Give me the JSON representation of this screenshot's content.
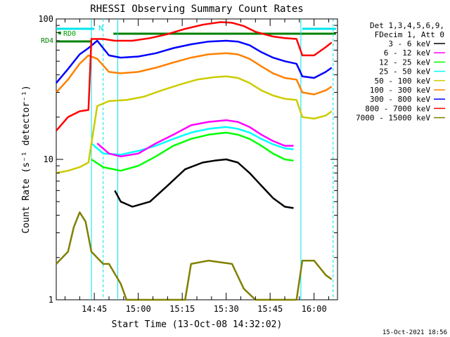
{
  "chart_data": {
    "type": "line",
    "title": "RHESSI Observing Summary Count Rates",
    "xlabel": "Start Time (13-Oct-08 14:32:02)",
    "ylabel": "Count Rate (s⁻¹ detector⁻¹)",
    "yscale": "log",
    "ylim": [
      1,
      100
    ],
    "xlim_minutes": [
      0,
      96
    ],
    "x_ticks": [
      {
        "m": 13,
        "label": "14:45"
      },
      {
        "m": 28,
        "label": "15:00"
      },
      {
        "m": 43,
        "label": "15:15"
      },
      {
        "m": 58,
        "label": "15:30"
      },
      {
        "m": 73,
        "label": "15:45"
      },
      {
        "m": 88,
        "label": "16:00"
      }
    ],
    "y_ticks": [
      {
        "v": 1,
        "label": "1"
      },
      {
        "v": 10,
        "label": "10"
      },
      {
        "v": 100,
        "label": "100"
      }
    ],
    "legend_header": [
      "Det 1,3,4,5,6,9,",
      "FDecim 1, Att 0"
    ],
    "legend_position": "top-right-outside",
    "footer_date": "15-Oct-2021 18:56",
    "flags": [
      {
        "name": "N",
        "color": "#00e5ee"
      },
      {
        "name": "RD0",
        "color": "#00a000"
      },
      {
        "name": "RD4",
        "color": "#008000"
      }
    ],
    "series": [
      {
        "name": "3 - 6 keV",
        "color": "#000000",
        "points": [
          [
            20,
            6
          ],
          [
            22,
            5
          ],
          [
            26,
            4.6
          ],
          [
            32,
            5
          ],
          [
            38,
            6.5
          ],
          [
            44,
            8.5
          ],
          [
            50,
            9.5
          ],
          [
            54,
            9.8
          ],
          [
            58,
            10
          ],
          [
            62,
            9.5
          ],
          [
            66,
            8
          ],
          [
            70,
            6.5
          ],
          [
            74,
            5.3
          ],
          [
            78,
            4.6
          ],
          [
            81,
            4.5
          ]
        ]
      },
      {
        "name": "6 - 12 keV",
        "color": "#ff00ff",
        "points": [
          [
            14,
            13
          ],
          [
            18,
            11
          ],
          [
            22,
            10.5
          ],
          [
            28,
            11
          ],
          [
            34,
            13
          ],
          [
            40,
            15
          ],
          [
            46,
            17.5
          ],
          [
            52,
            18.5
          ],
          [
            58,
            19
          ],
          [
            62,
            18.5
          ],
          [
            66,
            17
          ],
          [
            70,
            15
          ],
          [
            74,
            13.5
          ],
          [
            78,
            12.5
          ],
          [
            81,
            12.5
          ]
        ]
      },
      {
        "name": "12 - 25 keV",
        "color": "#00ff00",
        "points": [
          [
            12,
            10
          ],
          [
            16,
            8.8
          ],
          [
            22,
            8.3
          ],
          [
            28,
            9
          ],
          [
            34,
            10.5
          ],
          [
            40,
            12.5
          ],
          [
            46,
            14
          ],
          [
            52,
            15
          ],
          [
            58,
            15.5
          ],
          [
            62,
            15
          ],
          [
            66,
            14
          ],
          [
            70,
            12.5
          ],
          [
            74,
            11
          ],
          [
            78,
            10
          ],
          [
            81,
            9.8
          ]
        ]
      },
      {
        "name": "25 - 50 keV",
        "color": "#00ffff",
        "points": [
          [
            12,
            13
          ],
          [
            16,
            11
          ],
          [
            22,
            10.8
          ],
          [
            28,
            11.5
          ],
          [
            34,
            12.5
          ],
          [
            40,
            14
          ],
          [
            46,
            15.5
          ],
          [
            52,
            16.5
          ],
          [
            58,
            17
          ],
          [
            62,
            16.5
          ],
          [
            66,
            15.5
          ],
          [
            70,
            14
          ],
          [
            74,
            12.8
          ],
          [
            78,
            12
          ],
          [
            81,
            11.8
          ]
        ]
      },
      {
        "name": "50 - 100 keV",
        "color": "#cccc00",
        "points": [
          [
            0,
            8
          ],
          [
            4,
            8.3
          ],
          [
            8,
            8.8
          ],
          [
            11,
            9.5
          ],
          [
            14,
            24
          ],
          [
            18,
            26
          ],
          [
            24,
            26.5
          ],
          [
            30,
            28
          ],
          [
            36,
            31
          ],
          [
            42,
            34
          ],
          [
            48,
            37
          ],
          [
            54,
            38.5
          ],
          [
            58,
            39
          ],
          [
            62,
            38
          ],
          [
            66,
            35
          ],
          [
            70,
            31
          ],
          [
            74,
            28.5
          ],
          [
            78,
            27
          ],
          [
            82,
            26.5
          ],
          [
            84,
            20
          ],
          [
            88,
            19.5
          ],
          [
            92,
            20.5
          ],
          [
            94,
            22
          ]
        ]
      },
      {
        "name": "100 - 300 keV",
        "color": "#ff8000",
        "points": [
          [
            0,
            30
          ],
          [
            4,
            37
          ],
          [
            8,
            48
          ],
          [
            11,
            55
          ],
          [
            14,
            52
          ],
          [
            18,
            42
          ],
          [
            22,
            41
          ],
          [
            28,
            42
          ],
          [
            34,
            45
          ],
          [
            40,
            49
          ],
          [
            46,
            53
          ],
          [
            52,
            56
          ],
          [
            58,
            57
          ],
          [
            62,
            56
          ],
          [
            66,
            52
          ],
          [
            70,
            46
          ],
          [
            74,
            41
          ],
          [
            78,
            38
          ],
          [
            82,
            37
          ],
          [
            84,
            30
          ],
          [
            88,
            29
          ],
          [
            92,
            31
          ],
          [
            94,
            33
          ]
        ]
      },
      {
        "name": "300 - 800 keV",
        "color": "#0000ff",
        "points": [
          [
            0,
            35
          ],
          [
            4,
            44
          ],
          [
            8,
            56
          ],
          [
            11,
            62
          ],
          [
            14,
            70
          ],
          [
            18,
            55
          ],
          [
            22,
            53
          ],
          [
            28,
            54
          ],
          [
            34,
            57
          ],
          [
            40,
            62
          ],
          [
            46,
            66
          ],
          [
            52,
            69
          ],
          [
            58,
            70
          ],
          [
            62,
            69
          ],
          [
            66,
            65
          ],
          [
            70,
            58
          ],
          [
            74,
            53
          ],
          [
            78,
            50
          ],
          [
            82,
            48
          ],
          [
            84,
            39
          ],
          [
            88,
            38
          ],
          [
            92,
            42
          ],
          [
            94,
            45
          ]
        ]
      },
      {
        "name": "800 - 7000 keV",
        "color": "#ff0000",
        "points": [
          [
            0,
            16
          ],
          [
            4,
            20
          ],
          [
            8,
            22
          ],
          [
            11,
            22.5
          ],
          [
            12,
            72
          ],
          [
            16,
            72
          ],
          [
            20,
            70
          ],
          [
            26,
            70
          ],
          [
            32,
            73
          ],
          [
            38,
            78
          ],
          [
            44,
            85
          ],
          [
            50,
            91
          ],
          [
            56,
            95
          ],
          [
            60,
            94
          ],
          [
            64,
            89
          ],
          [
            68,
            81
          ],
          [
            74,
            75
          ],
          [
            78,
            73
          ],
          [
            82,
            72
          ],
          [
            84,
            55
          ],
          [
            88,
            55
          ],
          [
            92,
            63
          ],
          [
            94,
            68
          ]
        ]
      },
      {
        "name": "7000 - 15000 keV",
        "color": "#808000",
        "points": [
          [
            0,
            1.8
          ],
          [
            4,
            2.2
          ],
          [
            6,
            3.3
          ],
          [
            8,
            4.2
          ],
          [
            10,
            3.6
          ],
          [
            12,
            2.2
          ],
          [
            16,
            1.8
          ],
          [
            18,
            1.8
          ],
          [
            22,
            1.3
          ],
          [
            24,
            1
          ],
          [
            44,
            1
          ],
          [
            46,
            1.8
          ],
          [
            52,
            1.9
          ],
          [
            60,
            1.8
          ],
          [
            64,
            1.2
          ],
          [
            68,
            1
          ],
          [
            82,
            1
          ],
          [
            84,
            1.9
          ],
          [
            88,
            1.9
          ],
          [
            92,
            1.5
          ],
          [
            94,
            1.4
          ]
        ]
      }
    ]
  }
}
